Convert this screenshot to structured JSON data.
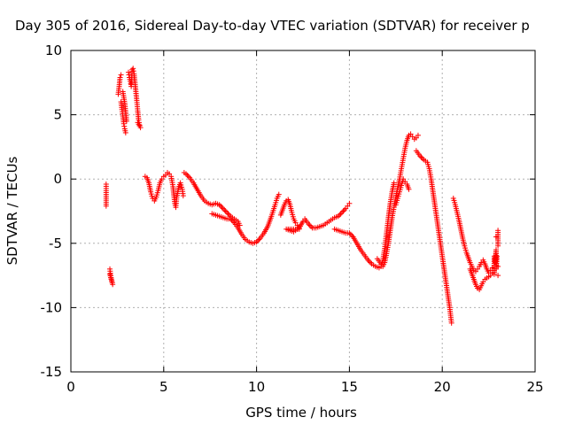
{
  "chart_data": {
    "type": "scatter",
    "title": "Day 305 of 2016, Sidereal Day-to-day VTEC variation (SDTVAR) for receiver p",
    "xlabel": "GPS time / hours",
    "ylabel": "SDTVAR / TECUs",
    "xlim": [
      0,
      25
    ],
    "ylim": [
      -15,
      10
    ],
    "xticks": [
      "0",
      "5",
      "10",
      "15",
      "20",
      "25"
    ],
    "yticks": [
      "10",
      "5",
      "0",
      "-5",
      "-10",
      "-15"
    ],
    "grid": true,
    "marker": "plus",
    "color": "#ff0000",
    "series": [
      {
        "values": [
          [
            1.9,
            -0.4
          ],
          [
            1.9,
            -0.9
          ],
          [
            1.9,
            -1.5
          ],
          [
            1.9,
            -2.1
          ],
          [
            2.1,
            -7.0
          ],
          [
            2.15,
            -7.5
          ],
          [
            2.2,
            -7.9
          ],
          [
            2.25,
            -8.2
          ],
          [
            2.1,
            -7.4
          ],
          [
            2.55,
            6.6
          ],
          [
            2.6,
            7.2
          ],
          [
            2.65,
            7.9
          ],
          [
            2.7,
            8.1
          ],
          [
            2.7,
            6.0
          ],
          [
            2.75,
            5.4
          ],
          [
            2.8,
            4.9
          ],
          [
            2.85,
            4.3
          ],
          [
            2.9,
            3.9
          ],
          [
            2.95,
            3.6
          ],
          [
            2.8,
            6.8
          ],
          [
            2.9,
            5.9
          ],
          [
            3.0,
            4.5
          ],
          [
            3.1,
            8.3
          ],
          [
            3.15,
            7.9
          ],
          [
            3.2,
            7.6
          ],
          [
            3.25,
            7.2
          ],
          [
            3.3,
            8.5
          ],
          [
            3.35,
            8.6
          ],
          [
            3.4,
            8.2
          ],
          [
            3.45,
            7.5
          ],
          [
            3.5,
            6.8
          ],
          [
            3.55,
            6.1
          ],
          [
            3.6,
            5.3
          ],
          [
            3.65,
            4.6
          ],
          [
            3.7,
            4.2
          ],
          [
            3.75,
            4.0
          ],
          [
            3.6,
            4.4
          ],
          [
            4.0,
            0.2
          ],
          [
            4.1,
            0.1
          ],
          [
            4.2,
            -0.3
          ],
          [
            4.3,
            -1.0
          ],
          [
            4.4,
            -1.5
          ],
          [
            4.5,
            -1.7
          ],
          [
            4.6,
            -1.4
          ],
          [
            4.7,
            -0.9
          ],
          [
            4.8,
            -0.3
          ],
          [
            4.9,
            0.0
          ],
          [
            5.0,
            0.2
          ],
          [
            5.1,
            0.3
          ],
          [
            5.2,
            0.5
          ],
          [
            5.3,
            0.4
          ],
          [
            5.4,
            0.2
          ],
          [
            5.5,
            -0.6
          ],
          [
            5.55,
            -1.3
          ],
          [
            5.6,
            -1.9
          ],
          [
            5.65,
            -2.2
          ],
          [
            5.7,
            -1.4
          ],
          [
            5.8,
            -0.7
          ],
          [
            5.9,
            -0.3
          ],
          [
            6.0,
            -0.8
          ],
          [
            6.05,
            -1.3
          ],
          [
            6.1,
            0.5
          ],
          [
            6.2,
            0.4
          ],
          [
            6.4,
            0.1
          ],
          [
            6.6,
            -0.3
          ],
          [
            6.8,
            -0.8
          ],
          [
            7.0,
            -1.3
          ],
          [
            7.2,
            -1.7
          ],
          [
            7.4,
            -1.9
          ],
          [
            7.6,
            -2.0
          ],
          [
            7.8,
            -1.9
          ],
          [
            8.0,
            -2.0
          ],
          [
            8.2,
            -2.3
          ],
          [
            8.4,
            -2.6
          ],
          [
            8.6,
            -2.9
          ],
          [
            8.8,
            -3.1
          ],
          [
            9.0,
            -3.3
          ],
          [
            9.1,
            -3.6
          ],
          [
            7.6,
            -2.7
          ],
          [
            7.8,
            -2.8
          ],
          [
            8.0,
            -2.9
          ],
          [
            8.2,
            -3.0
          ],
          [
            8.4,
            -3.1
          ],
          [
            8.6,
            -3.1
          ],
          [
            8.8,
            -3.4
          ],
          [
            9.0,
            -3.8
          ],
          [
            9.2,
            -4.3
          ],
          [
            9.4,
            -4.7
          ],
          [
            9.6,
            -4.9
          ],
          [
            9.8,
            -5.0
          ],
          [
            10.0,
            -4.9
          ],
          [
            10.2,
            -4.6
          ],
          [
            10.4,
            -4.2
          ],
          [
            10.6,
            -3.7
          ],
          [
            10.8,
            -2.9
          ],
          [
            11.0,
            -2.0
          ],
          [
            11.1,
            -1.5
          ],
          [
            11.2,
            -1.2
          ],
          [
            11.3,
            -2.8
          ],
          [
            11.4,
            -2.4
          ],
          [
            11.5,
            -2.0
          ],
          [
            11.6,
            -1.7
          ],
          [
            11.7,
            -1.6
          ],
          [
            11.8,
            -2.0
          ],
          [
            11.9,
            -2.6
          ],
          [
            12.0,
            -3.1
          ],
          [
            12.1,
            -3.4
          ],
          [
            12.2,
            -3.6
          ],
          [
            12.3,
            -3.9
          ],
          [
            11.6,
            -3.9
          ],
          [
            11.8,
            -4.0
          ],
          [
            12.0,
            -4.1
          ],
          [
            12.3,
            -3.8
          ],
          [
            12.5,
            -3.3
          ],
          [
            12.6,
            -3.1
          ],
          [
            12.8,
            -3.5
          ],
          [
            13.0,
            -3.8
          ],
          [
            13.2,
            -3.8
          ],
          [
            13.4,
            -3.7
          ],
          [
            13.6,
            -3.6
          ],
          [
            13.8,
            -3.4
          ],
          [
            14.0,
            -3.2
          ],
          [
            14.2,
            -3.0
          ],
          [
            14.4,
            -2.9
          ],
          [
            14.6,
            -2.6
          ],
          [
            14.8,
            -2.3
          ],
          [
            14.9,
            -2.1
          ],
          [
            15.0,
            -1.9
          ],
          [
            14.2,
            -3.9
          ],
          [
            14.4,
            -4.0
          ],
          [
            14.6,
            -4.1
          ],
          [
            14.8,
            -4.2
          ],
          [
            15.0,
            -4.2
          ],
          [
            15.2,
            -4.5
          ],
          [
            15.4,
            -5.0
          ],
          [
            15.6,
            -5.5
          ],
          [
            15.8,
            -5.9
          ],
          [
            16.0,
            -6.3
          ],
          [
            16.2,
            -6.6
          ],
          [
            16.4,
            -6.8
          ],
          [
            16.6,
            -6.9
          ],
          [
            16.7,
            -6.8
          ],
          [
            16.8,
            -6.3
          ],
          [
            16.9,
            -5.4
          ],
          [
            17.0,
            -4.2
          ],
          [
            17.1,
            -3.0
          ],
          [
            17.2,
            -1.9
          ],
          [
            17.3,
            -1.0
          ],
          [
            17.4,
            -0.3
          ],
          [
            16.5,
            -6.2
          ],
          [
            16.7,
            -6.6
          ],
          [
            16.8,
            -6.8
          ],
          [
            16.9,
            -6.5
          ],
          [
            17.0,
            -5.8
          ],
          [
            17.1,
            -5.0
          ],
          [
            17.2,
            -4.0
          ],
          [
            17.3,
            -3.0
          ],
          [
            17.4,
            -2.2
          ],
          [
            17.5,
            -1.4
          ],
          [
            17.6,
            -0.7
          ],
          [
            17.7,
            0.0
          ],
          [
            17.8,
            0.8
          ],
          [
            17.9,
            1.6
          ],
          [
            18.0,
            2.4
          ],
          [
            18.1,
            3.0
          ],
          [
            18.2,
            3.4
          ],
          [
            18.3,
            3.5
          ],
          [
            18.4,
            3.3
          ],
          [
            18.5,
            3.1
          ],
          [
            18.6,
            3.2
          ],
          [
            18.7,
            3.4
          ],
          [
            17.5,
            -2.0
          ],
          [
            17.6,
            -1.5
          ],
          [
            17.7,
            -1.0
          ],
          [
            17.8,
            -0.5
          ],
          [
            17.9,
            0.0
          ],
          [
            18.0,
            -0.2
          ],
          [
            18.1,
            -0.4
          ],
          [
            18.2,
            -0.8
          ],
          [
            18.6,
            2.2
          ],
          [
            18.8,
            1.8
          ],
          [
            19.0,
            1.5
          ],
          [
            19.2,
            1.3
          ],
          [
            19.3,
            0.8
          ],
          [
            19.4,
            0.0
          ],
          [
            19.5,
            -1.0
          ],
          [
            19.6,
            -2.0
          ],
          [
            19.7,
            -3.0
          ],
          [
            19.8,
            -4.0
          ],
          [
            19.9,
            -5.0
          ],
          [
            20.0,
            -6.0
          ],
          [
            20.1,
            -7.0
          ],
          [
            20.2,
            -8.0
          ],
          [
            20.3,
            -9.0
          ],
          [
            20.4,
            -10.0
          ],
          [
            20.45,
            -10.6
          ],
          [
            20.5,
            -11.2
          ],
          [
            20.6,
            -1.5
          ],
          [
            20.7,
            -2.0
          ],
          [
            20.8,
            -2.6
          ],
          [
            20.9,
            -3.2
          ],
          [
            21.0,
            -3.9
          ],
          [
            21.1,
            -4.6
          ],
          [
            21.2,
            -5.2
          ],
          [
            21.3,
            -5.7
          ],
          [
            21.4,
            -6.1
          ],
          [
            21.5,
            -6.5
          ],
          [
            21.6,
            -6.8
          ],
          [
            21.7,
            -7.1
          ],
          [
            21.8,
            -7.2
          ],
          [
            21.9,
            -7.0
          ],
          [
            22.0,
            -6.8
          ],
          [
            22.1,
            -6.5
          ],
          [
            22.2,
            -6.3
          ],
          [
            22.3,
            -6.6
          ],
          [
            22.4,
            -7.0
          ],
          [
            22.5,
            -7.3
          ],
          [
            22.6,
            -7.1
          ],
          [
            22.7,
            -6.9
          ],
          [
            21.5,
            -7.0
          ],
          [
            21.6,
            -7.4
          ],
          [
            21.7,
            -7.8
          ],
          [
            21.8,
            -8.2
          ],
          [
            21.9,
            -8.5
          ],
          [
            22.0,
            -8.6
          ],
          [
            22.1,
            -8.3
          ],
          [
            22.2,
            -8.0
          ],
          [
            22.3,
            -7.8
          ],
          [
            22.4,
            -7.7
          ],
          [
            22.5,
            -7.6
          ],
          [
            22.6,
            -7.5
          ],
          [
            22.7,
            -7.3
          ],
          [
            22.8,
            -7.4
          ],
          [
            22.8,
            -6.0
          ],
          [
            22.85,
            -6.5
          ],
          [
            22.9,
            -5.5
          ],
          [
            22.9,
            -7.0
          ],
          [
            22.95,
            -6.0
          ],
          [
            23.0,
            -4.0
          ],
          [
            23.0,
            -4.6
          ],
          [
            23.0,
            -5.2
          ],
          [
            23.0,
            -7.5
          ],
          [
            22.9,
            -4.5
          ],
          [
            23.0,
            -6.8
          ]
        ]
      }
    ]
  }
}
